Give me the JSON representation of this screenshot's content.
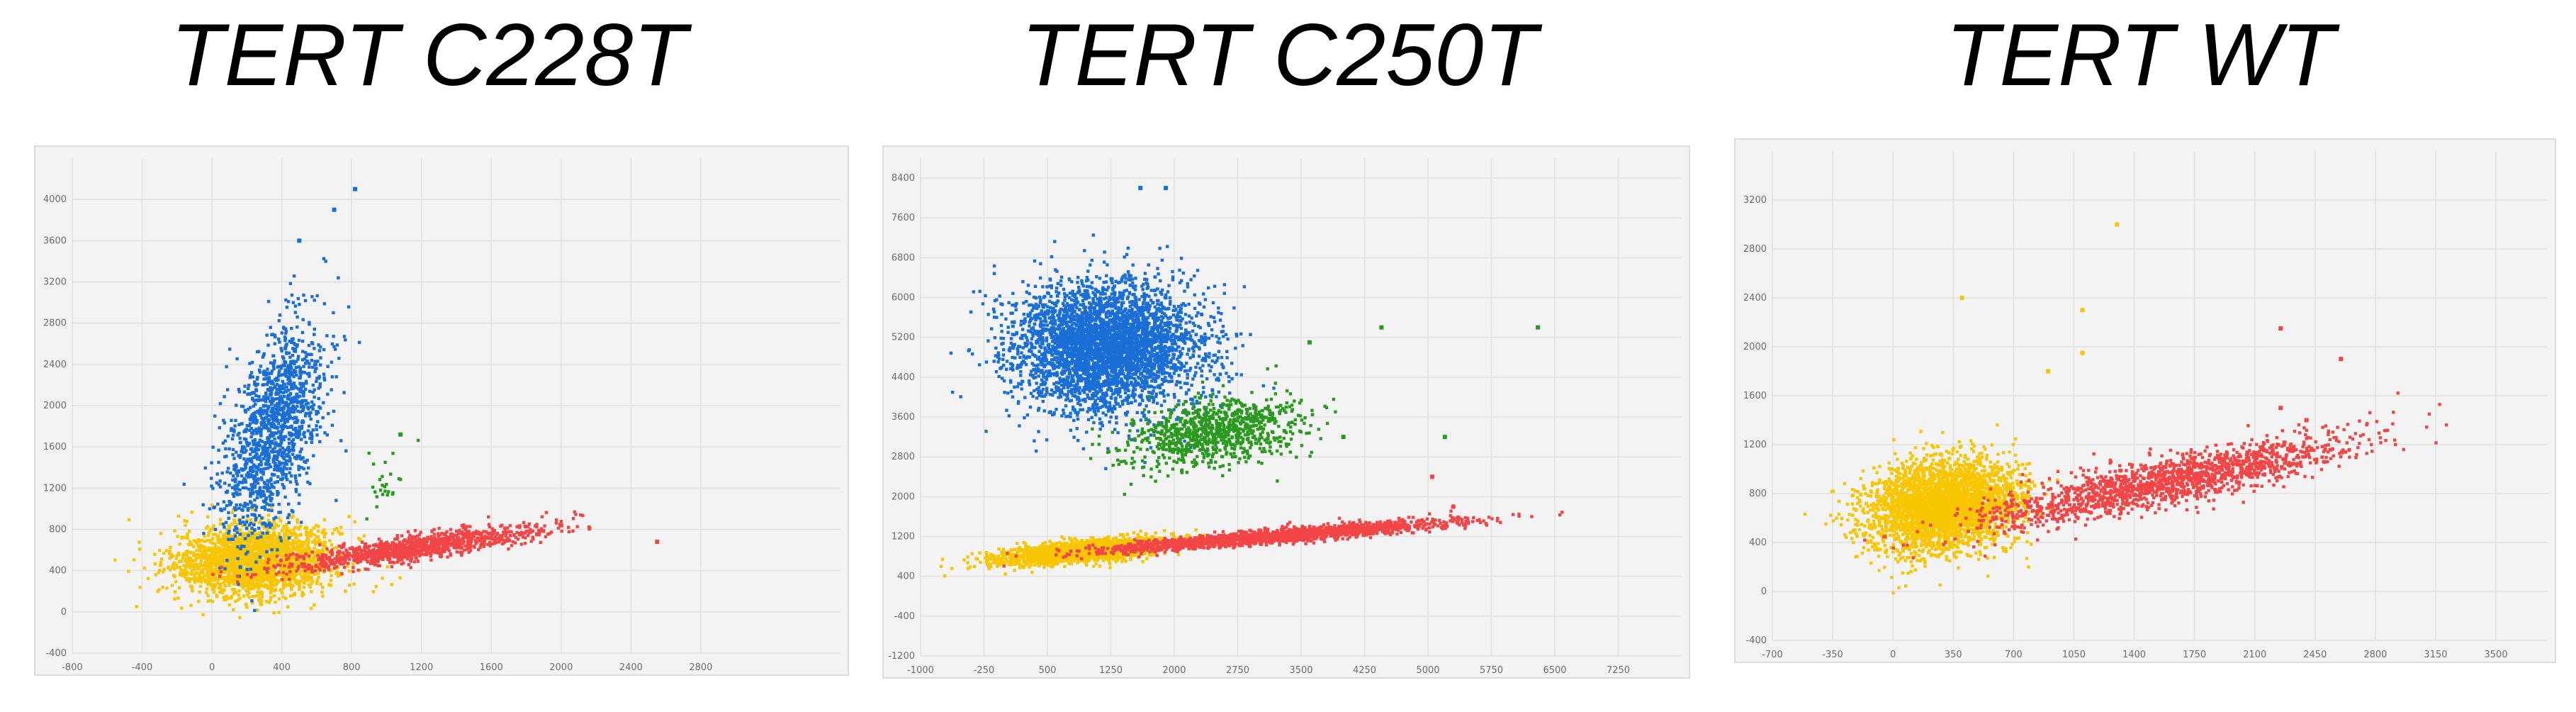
{
  "colors": {
    "blue": "#1a6fd6",
    "green": "#2a9a1e",
    "red": "#f24646",
    "yellow": "#f7c600",
    "plot_bg": "#f3f3f3",
    "grid": "#e0e0e0"
  },
  "chart_data": [
    {
      "type": "scatter",
      "title": "TERT C228T",
      "xlabel": "",
      "ylabel": "",
      "xlim": [
        -800,
        3600
      ],
      "ylim": [
        -400,
        4400
      ],
      "x_ticks": [
        -800,
        -400,
        0,
        400,
        800,
        1200,
        1600,
        2000,
        2400,
        2800
      ],
      "y_ticks": [
        -400,
        0,
        400,
        800,
        1200,
        1600,
        2000,
        2400,
        2800,
        3200,
        3600,
        4000
      ],
      "grid": true,
      "legend": "none",
      "clusters": [
        {
          "color": "yellow",
          "center": [
            250,
            500
          ],
          "spread": [
            230,
            170
          ],
          "count": 2200,
          "correlation": 0.1
        },
        {
          "color": "blue",
          "center": [
            350,
            1750
          ],
          "spread": [
            150,
            520
          ],
          "count": 1400,
          "correlation": 0.55
        },
        {
          "color": "red",
          "center": [
            1150,
            620
          ],
          "spread": [
            380,
            110
          ],
          "count": 1100,
          "correlation": 0.85
        },
        {
          "color": "green",
          "center": [
            980,
            1240
          ],
          "spread": [
            70,
            160
          ],
          "count": 25,
          "correlation": 0.2
        }
      ],
      "outliers": [
        {
          "color": "blue",
          "x": 700,
          "y": 3900
        },
        {
          "color": "blue",
          "x": 820,
          "y": 4100
        },
        {
          "color": "blue",
          "x": 500,
          "y": 3600
        },
        {
          "color": "green",
          "x": 1080,
          "y": 1720
        },
        {
          "color": "red",
          "x": 2550,
          "y": 680
        },
        {
          "color": "red",
          "x": 2000,
          "y": 840
        }
      ]
    },
    {
      "type": "scatter",
      "title": "TERT C250T",
      "xlabel": "",
      "ylabel": "",
      "xlim": [
        -1000,
        8000
      ],
      "ylim": [
        -1200,
        8800
      ],
      "x_ticks": [
        -1000,
        -250,
        500,
        1250,
        2000,
        2750,
        3500,
        4250,
        5000,
        5750,
        6500,
        7250
      ],
      "y_ticks": [
        -1200,
        -400,
        400,
        1200,
        2000,
        2800,
        3600,
        4400,
        5200,
        6000,
        6800,
        7600,
        8400
      ],
      "grid": true,
      "legend": "none",
      "clusters": [
        {
          "color": "yellow",
          "center": [
            900,
            900
          ],
          "spread": [
            500,
            130
          ],
          "count": 1800,
          "correlation": 0.6
        },
        {
          "color": "red",
          "center": [
            3200,
            1200
          ],
          "spread": [
            1000,
            150
          ],
          "count": 1800,
          "correlation": 0.9
        },
        {
          "color": "blue",
          "center": [
            1200,
            5000
          ],
          "spread": [
            560,
            650
          ],
          "count": 3800,
          "correlation": 0.0
        },
        {
          "color": "green",
          "center": [
            2500,
            3300
          ],
          "spread": [
            520,
            350
          ],
          "count": 900,
          "correlation": 0.35
        }
      ],
      "outliers": [
        {
          "color": "blue",
          "x": 1600,
          "y": 8200
        },
        {
          "color": "blue",
          "x": 1900,
          "y": 8200
        },
        {
          "color": "green",
          "x": 6300,
          "y": 5400
        },
        {
          "color": "green",
          "x": 4450,
          "y": 5400
        },
        {
          "color": "green",
          "x": 3600,
          "y": 5100
        },
        {
          "color": "green",
          "x": 5200,
          "y": 3200
        },
        {
          "color": "green",
          "x": 4000,
          "y": 3200
        },
        {
          "color": "red",
          "x": 5300,
          "y": 1800
        },
        {
          "color": "red",
          "x": 5050,
          "y": 2400
        }
      ]
    },
    {
      "type": "scatter",
      "title": "TERT WT",
      "xlabel": "",
      "ylabel": "",
      "xlim": [
        -700,
        3800
      ],
      "ylim": [
        -400,
        3600
      ],
      "x_ticks": [
        -700,
        -350,
        0,
        350,
        700,
        1050,
        1400,
        1750,
        2100,
        2450,
        2800,
        3150,
        3500
      ],
      "y_ticks": [
        -400,
        0,
        400,
        800,
        1200,
        1600,
        2000,
        2400,
        2800,
        3200
      ],
      "grid": true,
      "legend": "none",
      "clusters": [
        {
          "color": "yellow",
          "center": [
            300,
            700
          ],
          "spread": [
            220,
            190
          ],
          "count": 3200,
          "correlation": 0.2
        },
        {
          "color": "red",
          "center": [
            1600,
            900
          ],
          "spread": [
            560,
            190
          ],
          "count": 1600,
          "correlation": 0.85
        }
      ],
      "outliers": [
        {
          "color": "yellow",
          "x": 1300,
          "y": 3000
        },
        {
          "color": "yellow",
          "x": 400,
          "y": 2400
        },
        {
          "color": "yellow",
          "x": 1100,
          "y": 2300
        },
        {
          "color": "yellow",
          "x": 1100,
          "y": 1950
        },
        {
          "color": "yellow",
          "x": 900,
          "y": 1800
        },
        {
          "color": "red",
          "x": 2600,
          "y": 1900
        },
        {
          "color": "red",
          "x": 2250,
          "y": 2150
        },
        {
          "color": "red",
          "x": 2250,
          "y": 1500
        },
        {
          "color": "red",
          "x": 2400,
          "y": 1400
        }
      ]
    }
  ]
}
